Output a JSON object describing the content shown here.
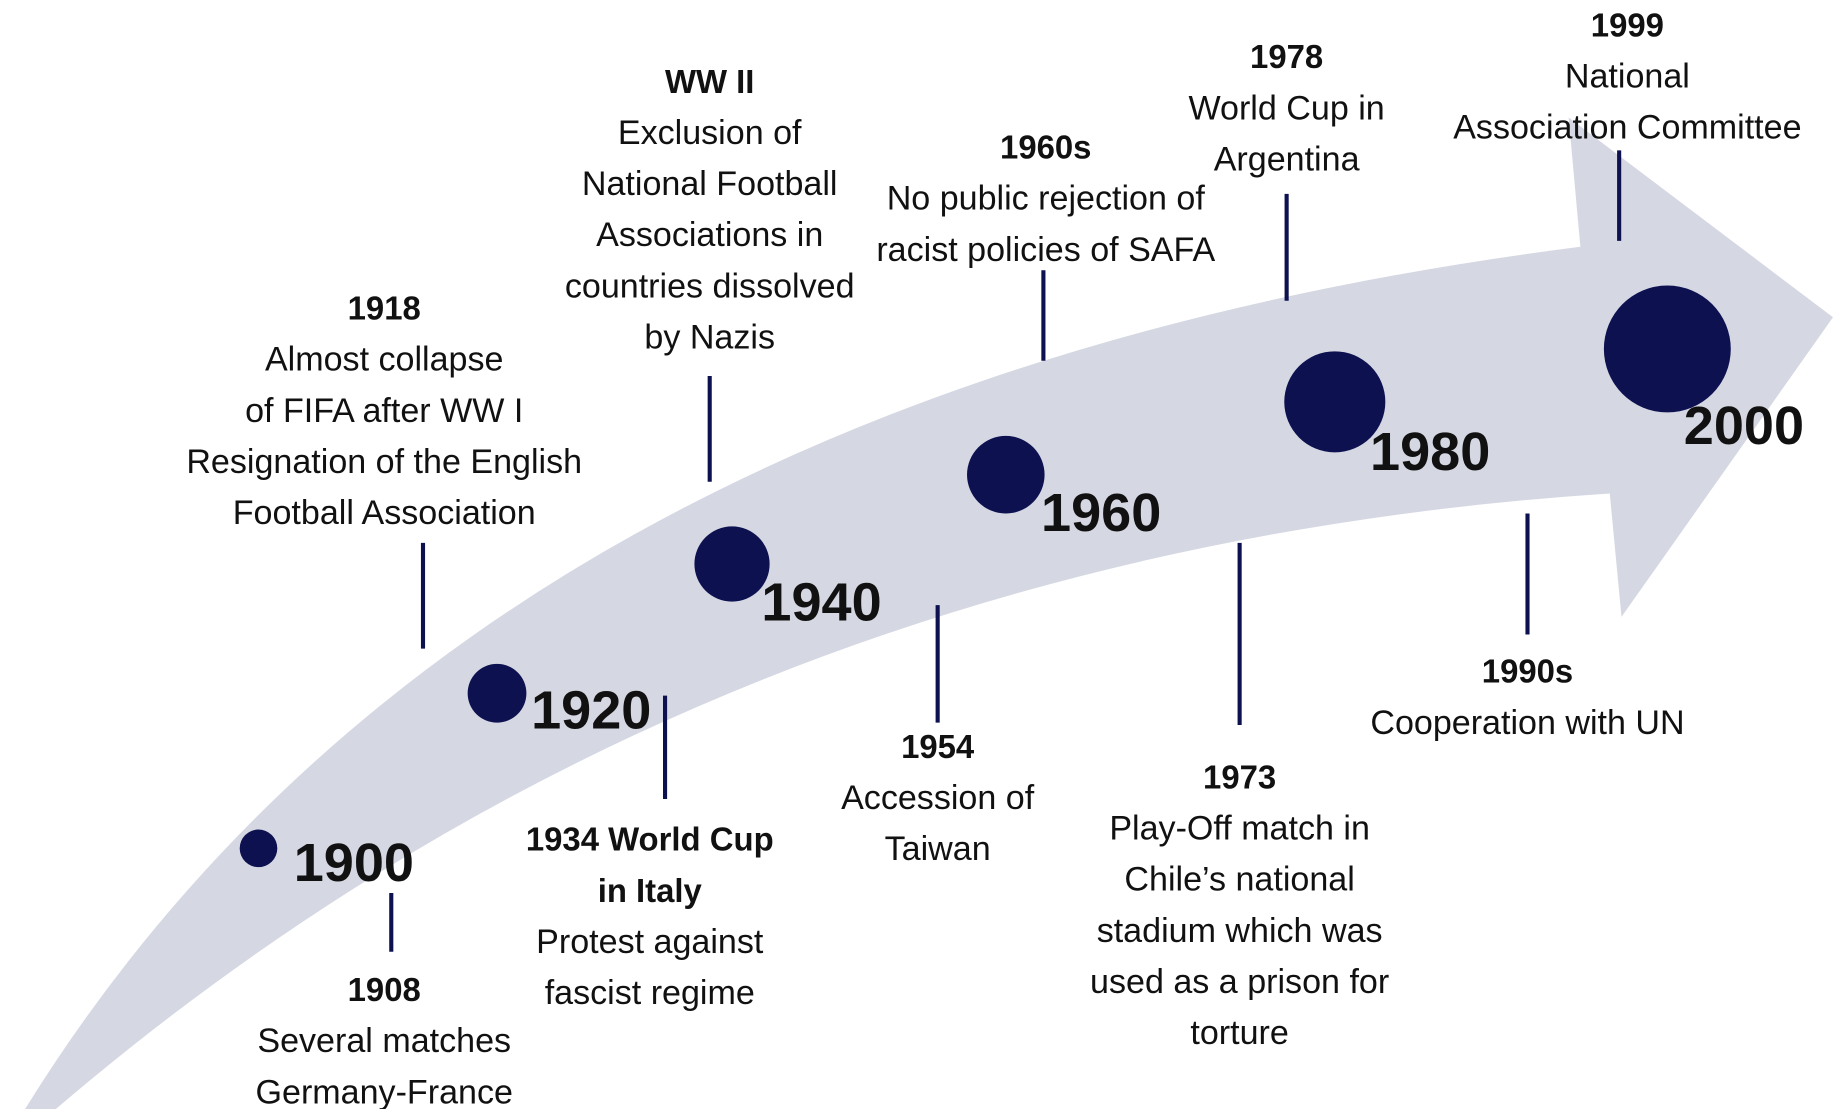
{
  "decades": [
    "1900",
    "1920",
    "1940",
    "1960",
    "1980",
    "2000"
  ],
  "events": [
    {
      "title": [
        "1908"
      ],
      "text": [
        "Several matches",
        "Germany-France"
      ]
    },
    {
      "title": [
        "1918"
      ],
      "text": [
        "Almost collapse",
        "of FIFA after WW I",
        "Resignation of the English",
        "Football Association"
      ]
    },
    {
      "title": [
        "1934 World Cup",
        "in Italy"
      ],
      "text": [
        "Protest against",
        "fascist regime"
      ]
    },
    {
      "title": [
        "WW II"
      ],
      "text": [
        "Exclusion of",
        "National Football",
        "Associations in",
        "countries dissolved",
        "by Nazis"
      ]
    },
    {
      "title": [
        "1954"
      ],
      "text": [
        "Accession of",
        "Taiwan"
      ]
    },
    {
      "title": [
        "1960s"
      ],
      "text": [
        "No public rejection of",
        "racist policies of SAFA"
      ]
    },
    {
      "title": [
        "1973"
      ],
      "text": [
        "Play-Off match in",
        "Chile’s national",
        "stadium which was",
        "used as a prison for",
        "torture"
      ]
    },
    {
      "title": [
        "1978"
      ],
      "text": [
        "World Cup in",
        "Argentina"
      ]
    },
    {
      "title": [
        "1990s"
      ],
      "text": [
        "Cooperation with UN"
      ]
    },
    {
      "title": [
        "1999"
      ],
      "text": [
        "National",
        "Association Committee"
      ]
    }
  ]
}
